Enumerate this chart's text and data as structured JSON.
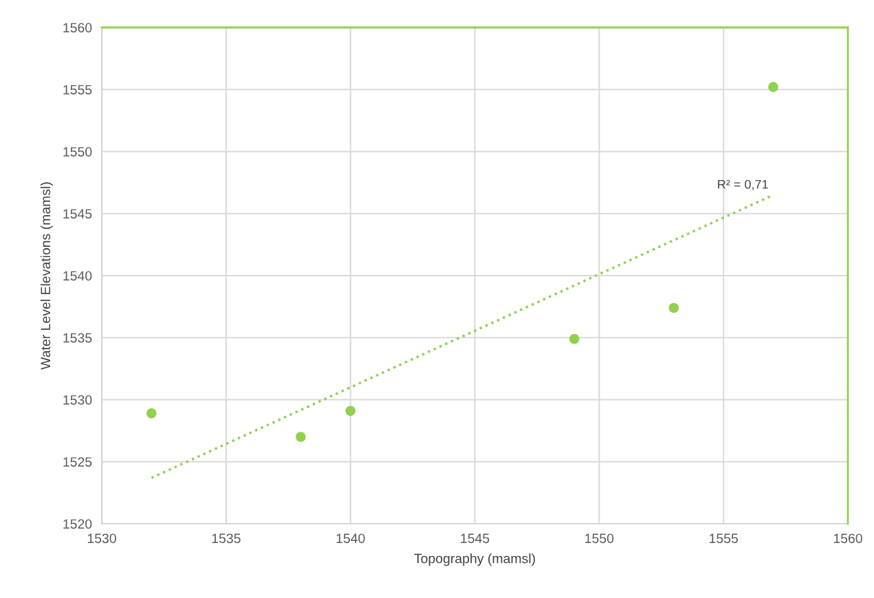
{
  "chart_data": {
    "type": "scatter",
    "xlabel": "Topography (mamsl)",
    "ylabel": "Water Level Elevations (mamsl)",
    "series": [
      {
        "color": "#92d050",
        "x": [
          1532,
          1538,
          1540,
          1549,
          1553,
          1557
        ],
        "values": [
          1528.9,
          1527.0,
          1529.1,
          1534.9,
          1537.4,
          1555.2
        ],
        "marker": "circle"
      },
      {
        "type": "line",
        "color": "#92d050",
        "x": [
          1532,
          1557
        ],
        "values": [
          1523.7,
          1546.5
        ],
        "line_style": "dotted",
        "marker": "none"
      }
    ],
    "annotations": [
      "R² = 0,71"
    ],
    "xlim": [
      1530,
      1560
    ],
    "xticks": [
      1530,
      1535,
      1540,
      1545,
      1550,
      1555,
      1560
    ],
    "ylim": [
      1520,
      1560
    ],
    "yticks": [
      1520,
      1525,
      1530,
      1535,
      1540,
      1545,
      1550,
      1555,
      1560
    ],
    "grid": true,
    "legend": false
  }
}
